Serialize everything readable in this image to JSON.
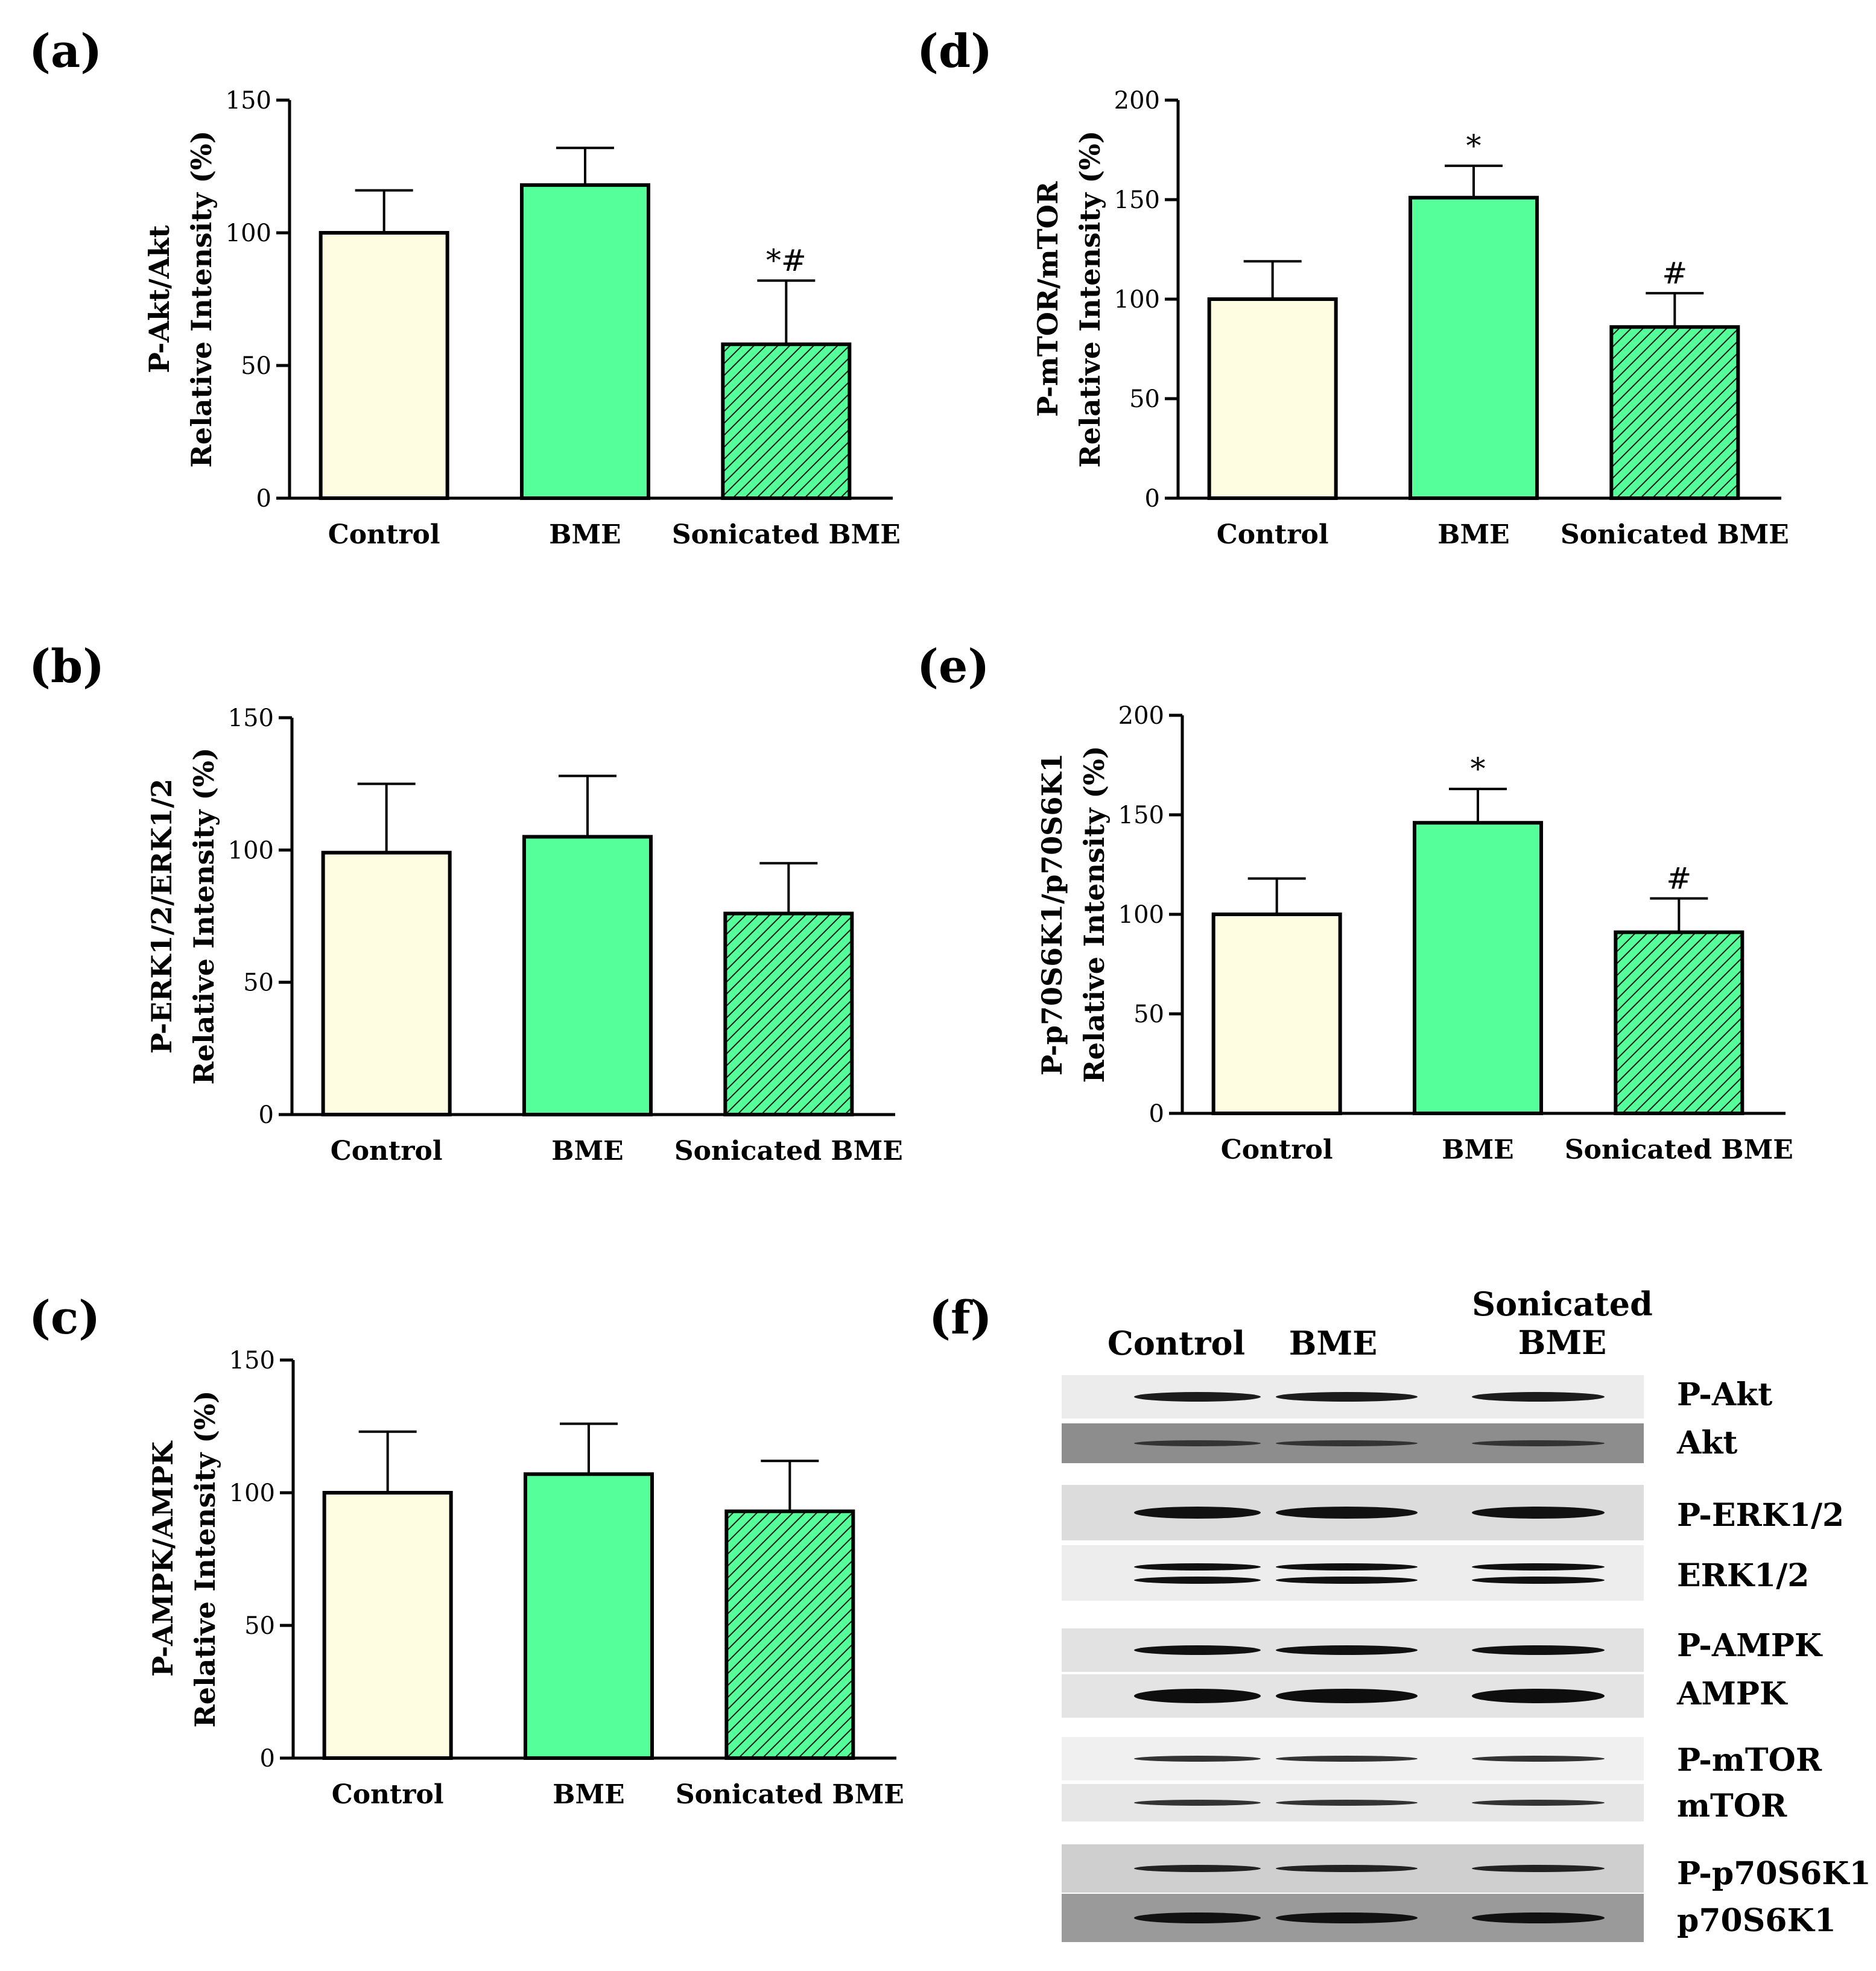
{
  "colors": {
    "control": "#fffde1",
    "bme": "#55ff99",
    "sonicated": "#55ff99",
    "hatch": "#1a1a1a",
    "axis": "#000000"
  },
  "chart_data": [
    {
      "id": "a",
      "panel_label": "(a)",
      "type": "bar",
      "title": "",
      "categories": [
        "Control",
        "BME",
        "Sonicated BME"
      ],
      "values": [
        100,
        118,
        58
      ],
      "errors": [
        16,
        14,
        24
      ],
      "significance": [
        "",
        "",
        "*#"
      ],
      "ylabel_lines": [
        "P-Akt/Akt",
        "Relative Intensity (%)"
      ],
      "ylim": [
        0,
        150
      ],
      "yticks": [
        0,
        50,
        100,
        150
      ]
    },
    {
      "id": "b",
      "panel_label": "(b)",
      "type": "bar",
      "title": "",
      "categories": [
        "Control",
        "BME",
        "Sonicated BME"
      ],
      "values": [
        99,
        105,
        76
      ],
      "errors": [
        26,
        23,
        19
      ],
      "significance": [
        "",
        "",
        ""
      ],
      "ylabel_lines": [
        "P-ERK1/2/ERK1/2",
        "Relative Intensity (%)"
      ],
      "ylim": [
        0,
        150
      ],
      "yticks": [
        0,
        50,
        100,
        150
      ]
    },
    {
      "id": "c",
      "panel_label": "(c)",
      "type": "bar",
      "title": "",
      "categories": [
        "Control",
        "BME",
        "Sonicated BME"
      ],
      "values": [
        100,
        107,
        93
      ],
      "errors": [
        23,
        19,
        19
      ],
      "significance": [
        "",
        "",
        ""
      ],
      "ylabel_lines": [
        "P-AMPK/AMPK",
        "Relative Intensity (%)"
      ],
      "ylim": [
        0,
        150
      ],
      "yticks": [
        0,
        50,
        100,
        150
      ]
    },
    {
      "id": "d",
      "panel_label": "(d)",
      "type": "bar",
      "title": "",
      "categories": [
        "Control",
        "BME",
        "Sonicated BME"
      ],
      "values": [
        100,
        151,
        86
      ],
      "errors": [
        19,
        16,
        17
      ],
      "significance": [
        "",
        "*",
        "#"
      ],
      "ylabel_lines": [
        "P-mTOR/mTOR",
        "Relative Intensity (%)"
      ],
      "ylim": [
        0,
        200
      ],
      "yticks": [
        0,
        50,
        100,
        150,
        200
      ]
    },
    {
      "id": "e",
      "panel_label": "(e)",
      "type": "bar",
      "title": "",
      "categories": [
        "Control",
        "BME",
        "Sonicated BME"
      ],
      "values": [
        100,
        146,
        91
      ],
      "errors": [
        18,
        17,
        17
      ],
      "significance": [
        "",
        "*",
        "#"
      ],
      "ylabel_lines": [
        "P-p70S6K1/p70S6K1",
        "Relative Intensity (%)"
      ],
      "ylim": [
        0,
        200
      ],
      "yticks": [
        0,
        50,
        100,
        150,
        200
      ]
    }
  ],
  "blot": {
    "panel_label": "(f)",
    "lanes": [
      "Control",
      "BME",
      "Sonicated\nBME"
    ],
    "rows": [
      "P-Akt",
      "Akt",
      "P-ERK1/2",
      "ERK1/2",
      "P-AMPK",
      "AMPK",
      "P-mTOR",
      "mTOR",
      "P-p70S6K1",
      "p70S6K1"
    ]
  }
}
